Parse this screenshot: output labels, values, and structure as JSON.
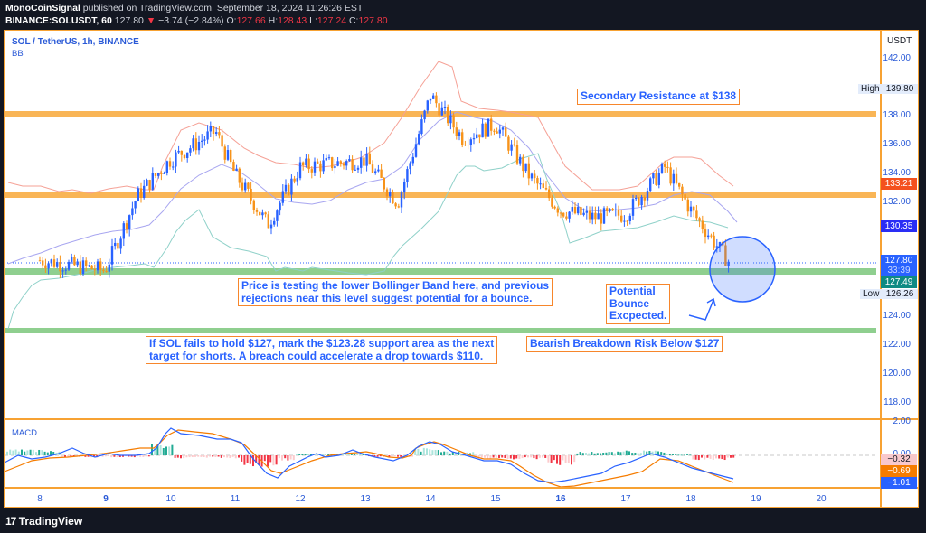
{
  "header": {
    "author": "MonoCoinSignal",
    "published_text": "published on TradingView.com, September 18, 2024 11:26:26 EST",
    "symbol_line": "BINANCE:SOLUSDT, 60",
    "last": "127.80",
    "change": "−3.74 (−2.84%)",
    "open_label": "O:",
    "open": "127.66",
    "high_label": "H:",
    "high": "128.43",
    "low_label": "L:",
    "low": "127.24",
    "close_label": "C:",
    "close": "127.80"
  },
  "chart": {
    "title": "SOL / TetherUS, 1h, BINANCE",
    "indicator": "BB",
    "currency": "USDT",
    "price_ticks": [
      "142.00",
      "138.00",
      "136.00",
      "134.00",
      "132.00",
      "130.00",
      "124.00",
      "122.00",
      "120.00",
      "118.00"
    ],
    "high_label": "High",
    "high_value": "139.80",
    "low_label": "Low",
    "low_value": "126.26",
    "tags": {
      "bb_upper": "133.21",
      "bb_basis": "130.35",
      "price": "127.80",
      "countdown": "33:39",
      "bb_lower": "127.49"
    },
    "macd_label": "MACD",
    "macd_ticks": [
      "2.00",
      "0.00"
    ],
    "macd_tags": {
      "hist": "−0.32",
      "signal": "−0.69",
      "macd": "−1.01"
    },
    "time_labels": [
      "8",
      "9",
      "10",
      "11",
      "12",
      "13",
      "14",
      "15",
      "16",
      "17",
      "18",
      "19",
      "20"
    ]
  },
  "annotations": {
    "resistance": "Secondary Resistance at $138",
    "bb_note_1": "Price is testing the lower Bollinger Band here, and previous",
    "bb_note_2": "rejections near this level suggest potential for a bounce.",
    "bounce_1": "Potential",
    "bounce_2": "Bounce",
    "bounce_3": "Excpected.",
    "short_1": "If SOL fails to hold $127, mark the $123.28 support area as the next",
    "short_2": "target for shorts. A breach could accelerate a drop towards $110.",
    "bearish": "Bearish Breakdown Risk Below $127"
  },
  "footer": {
    "brand": "TradingView"
  },
  "colors": {
    "up": "#2962ff",
    "down": "#f7931a",
    "resistance_line": "#f9b556",
    "support_line": "#8fcf8f",
    "bb_upper": "#f5a196",
    "bb_basis": "#a8a6f0",
    "bb_lower": "#8fd1c9",
    "macd": "#2962ff",
    "signal": "#f57c00"
  },
  "chart_data": {
    "type": "candlestick",
    "title": "SOL / TetherUS, 1h, BINANCE",
    "xlabel": "",
    "ylabel": "USDT",
    "ylim": [
      117,
      143
    ],
    "x": [
      "8",
      "9",
      "10",
      "11",
      "12",
      "13",
      "14",
      "15",
      "16",
      "17",
      "18",
      "19",
      "20"
    ],
    "approx_close_path": [
      {
        "x": "8",
        "close": 128.0
      },
      {
        "x": "9",
        "close": 127.3
      },
      {
        "x": "9.5",
        "close": 132.5
      },
      {
        "x": "10",
        "close": 135.0
      },
      {
        "x": "10.7",
        "close": 137.0
      },
      {
        "x": "11",
        "close": 134.0
      },
      {
        "x": "11.5",
        "close": 130.5
      },
      {
        "x": "12",
        "close": 134.5
      },
      {
        "x": "13",
        "close": 135.0
      },
      {
        "x": "13.5",
        "close": 132.0
      },
      {
        "x": "14",
        "close": 139.5
      },
      {
        "x": "14.5",
        "close": 136.5
      },
      {
        "x": "15",
        "close": 137.5
      },
      {
        "x": "15.5",
        "close": 134.0
      },
      {
        "x": "16",
        "close": 131.5
      },
      {
        "x": "16.5",
        "close": 131.0
      },
      {
        "x": "17",
        "close": 131.2
      },
      {
        "x": "17.6",
        "close": 134.5
      },
      {
        "x": "18",
        "close": 131.5
      },
      {
        "x": "18.6",
        "close": 127.8
      }
    ],
    "horizontal_levels": [
      {
        "price": 138.2,
        "color": "orange",
        "label": "Secondary Resistance at $138"
      },
      {
        "price": 132.6,
        "color": "orange"
      },
      {
        "price": 127.3,
        "color": "green"
      },
      {
        "price": 123.28,
        "color": "green"
      }
    ],
    "bollinger": {
      "upper": 133.21,
      "basis": 130.35,
      "lower": 127.49
    },
    "high": 139.8,
    "low": 126.26,
    "last": 127.8,
    "macd": {
      "macd": -1.01,
      "signal": -0.69,
      "histogram": -0.32,
      "ylim": [
        -2,
        2
      ]
    }
  }
}
